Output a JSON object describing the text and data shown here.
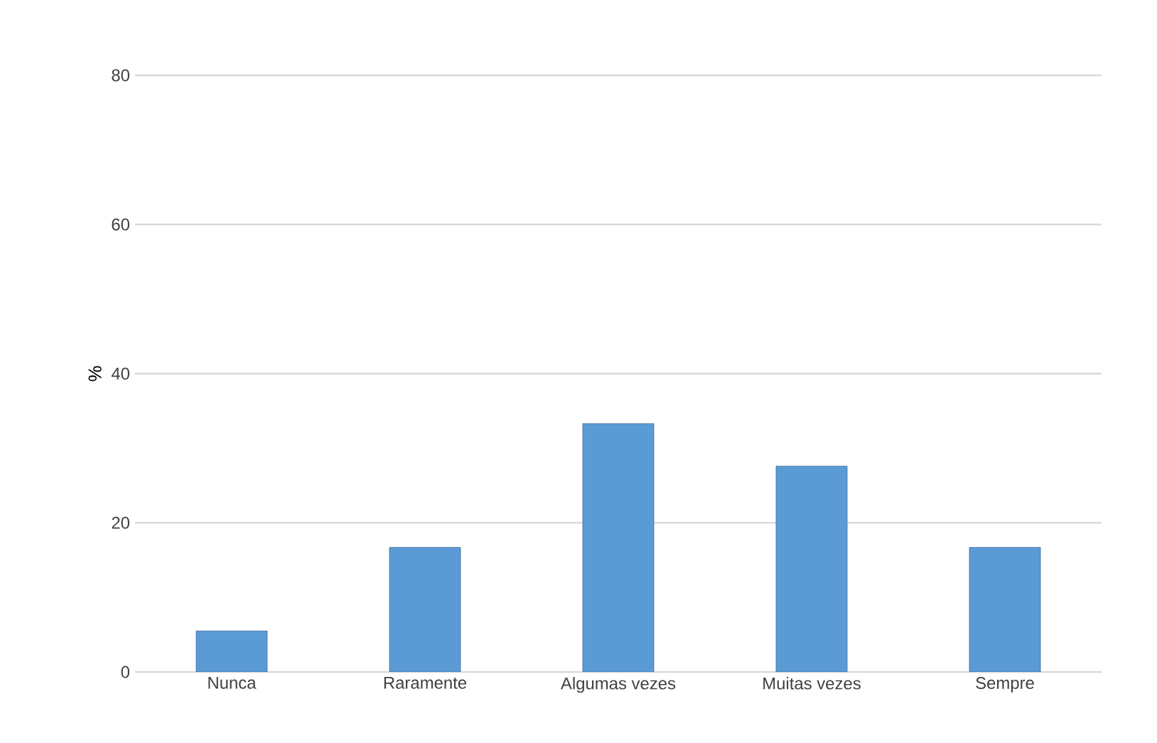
{
  "chart_data": {
    "type": "bar",
    "ylabel": "%",
    "categories": [
      "Nunca",
      "Raramente",
      "Algumas vezes",
      "Muitas vezes",
      "Sempre"
    ],
    "values": [
      5.5,
      16.7,
      33.3,
      27.6,
      16.7
    ],
    "color": "#5b9bd5",
    "ylim": [
      0,
      80
    ],
    "yticks": [
      0,
      20,
      40,
      60,
      80
    ],
    "grid": "y"
  }
}
